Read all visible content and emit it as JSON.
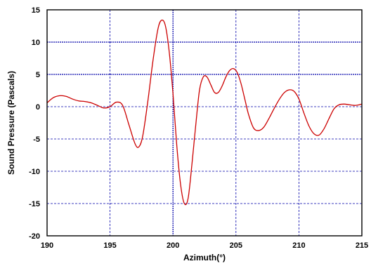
{
  "chart_data": {
    "type": "line",
    "title": "",
    "xlabel": "Azimuth(°)",
    "ylabel": "Sound  Pressure  (Pascals)",
    "xlim": [
      190,
      215
    ],
    "ylim": [
      -20,
      15
    ],
    "xticks": [
      190,
      195,
      200,
      205,
      210,
      215
    ],
    "yticks": [
      15,
      10,
      5,
      0,
      -5,
      -10,
      -15,
      -20
    ],
    "xtick_labels": [
      "190",
      "195",
      "200",
      "205",
      "210",
      "215"
    ],
    "ytick_labels": [
      "15",
      "10",
      "5",
      "0",
      "-5",
      "-10",
      "-15",
      "-20"
    ],
    "grid": true,
    "colors": {
      "line": "#cc0000",
      "grid": "#0000aa",
      "frame": "#000000"
    },
    "series": [
      {
        "x": [
          190.0,
          190.5,
          191.0,
          191.5,
          192.0,
          192.5,
          193.0,
          193.5,
          194.0,
          194.5,
          195.0,
          195.5,
          196.0,
          196.5,
          197.0,
          197.3,
          197.6,
          198.0,
          198.4,
          198.8,
          199.1,
          199.4,
          199.7,
          200.0,
          200.3,
          200.6,
          200.9,
          201.2,
          201.5,
          201.8,
          202.1,
          202.4,
          202.7,
          203.0,
          203.3,
          203.6,
          203.9,
          204.2,
          204.5,
          204.8,
          205.1,
          205.4,
          205.7,
          206.0,
          206.4,
          206.8,
          207.2,
          207.6,
          208.0,
          208.4,
          208.8,
          209.2,
          209.6,
          210.0,
          210.4,
          210.8,
          211.2,
          211.6,
          212.0,
          212.4,
          212.8,
          213.2,
          213.6,
          214.0,
          214.5,
          215.0
        ],
        "y": [
          0.6,
          1.4,
          1.7,
          1.6,
          1.2,
          0.9,
          0.8,
          0.6,
          0.2,
          -0.2,
          0.0,
          0.7,
          0.2,
          -2.8,
          -5.8,
          -6.2,
          -4.5,
          0.8,
          7.0,
          12.0,
          13.4,
          12.5,
          8.5,
          2.0,
          -6.0,
          -12.0,
          -15.0,
          -14.2,
          -9.0,
          -3.0,
          2.5,
          4.6,
          4.6,
          3.4,
          2.2,
          2.2,
          3.2,
          4.6,
          5.6,
          5.9,
          5.3,
          3.6,
          1.2,
          -1.2,
          -3.3,
          -3.7,
          -3.2,
          -1.9,
          -0.4,
          1.0,
          2.1,
          2.6,
          2.4,
          1.2,
          -1.0,
          -3.0,
          -4.2,
          -4.4,
          -3.4,
          -1.8,
          -0.3,
          0.3,
          0.4,
          0.3,
          0.2,
          0.4
        ]
      }
    ]
  }
}
